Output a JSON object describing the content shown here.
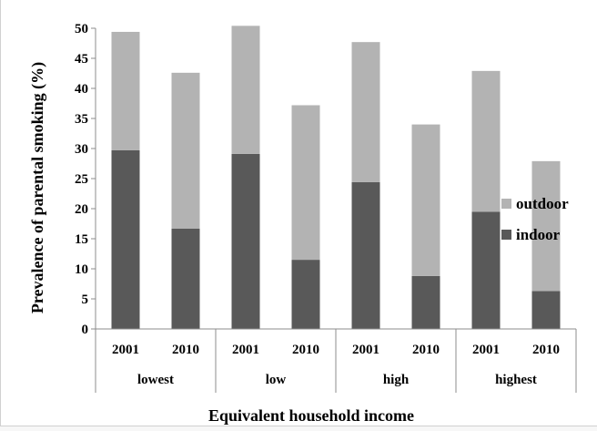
{
  "chart_data": {
    "type": "bar",
    "stacked": true,
    "title": "",
    "xlabel": "Equivalent household  income",
    "ylabel": "Prevalence of parental smoking (%)",
    "ylim": [
      0,
      50
    ],
    "yticks": [
      0,
      5,
      10,
      15,
      20,
      25,
      30,
      35,
      40,
      45,
      50
    ],
    "groups": [
      "lowest",
      "low",
      "high",
      "highest"
    ],
    "categories": [
      "2001",
      "2010",
      "2001",
      "2010",
      "2001",
      "2010",
      "2001",
      "2010"
    ],
    "series": [
      {
        "name": "indoor",
        "color": "#595959",
        "values": [
          29.7,
          16.7,
          29.1,
          11.5,
          24.4,
          8.8,
          19.5,
          6.3
        ]
      },
      {
        "name": "outdoor",
        "color": "#b3b3b3",
        "values": [
          19.7,
          25.9,
          21.3,
          25.7,
          23.3,
          25.2,
          23.4,
          21.6
        ]
      }
    ],
    "legend": {
      "position": "right",
      "order": [
        "outdoor",
        "indoor"
      ]
    },
    "grid": false
  }
}
